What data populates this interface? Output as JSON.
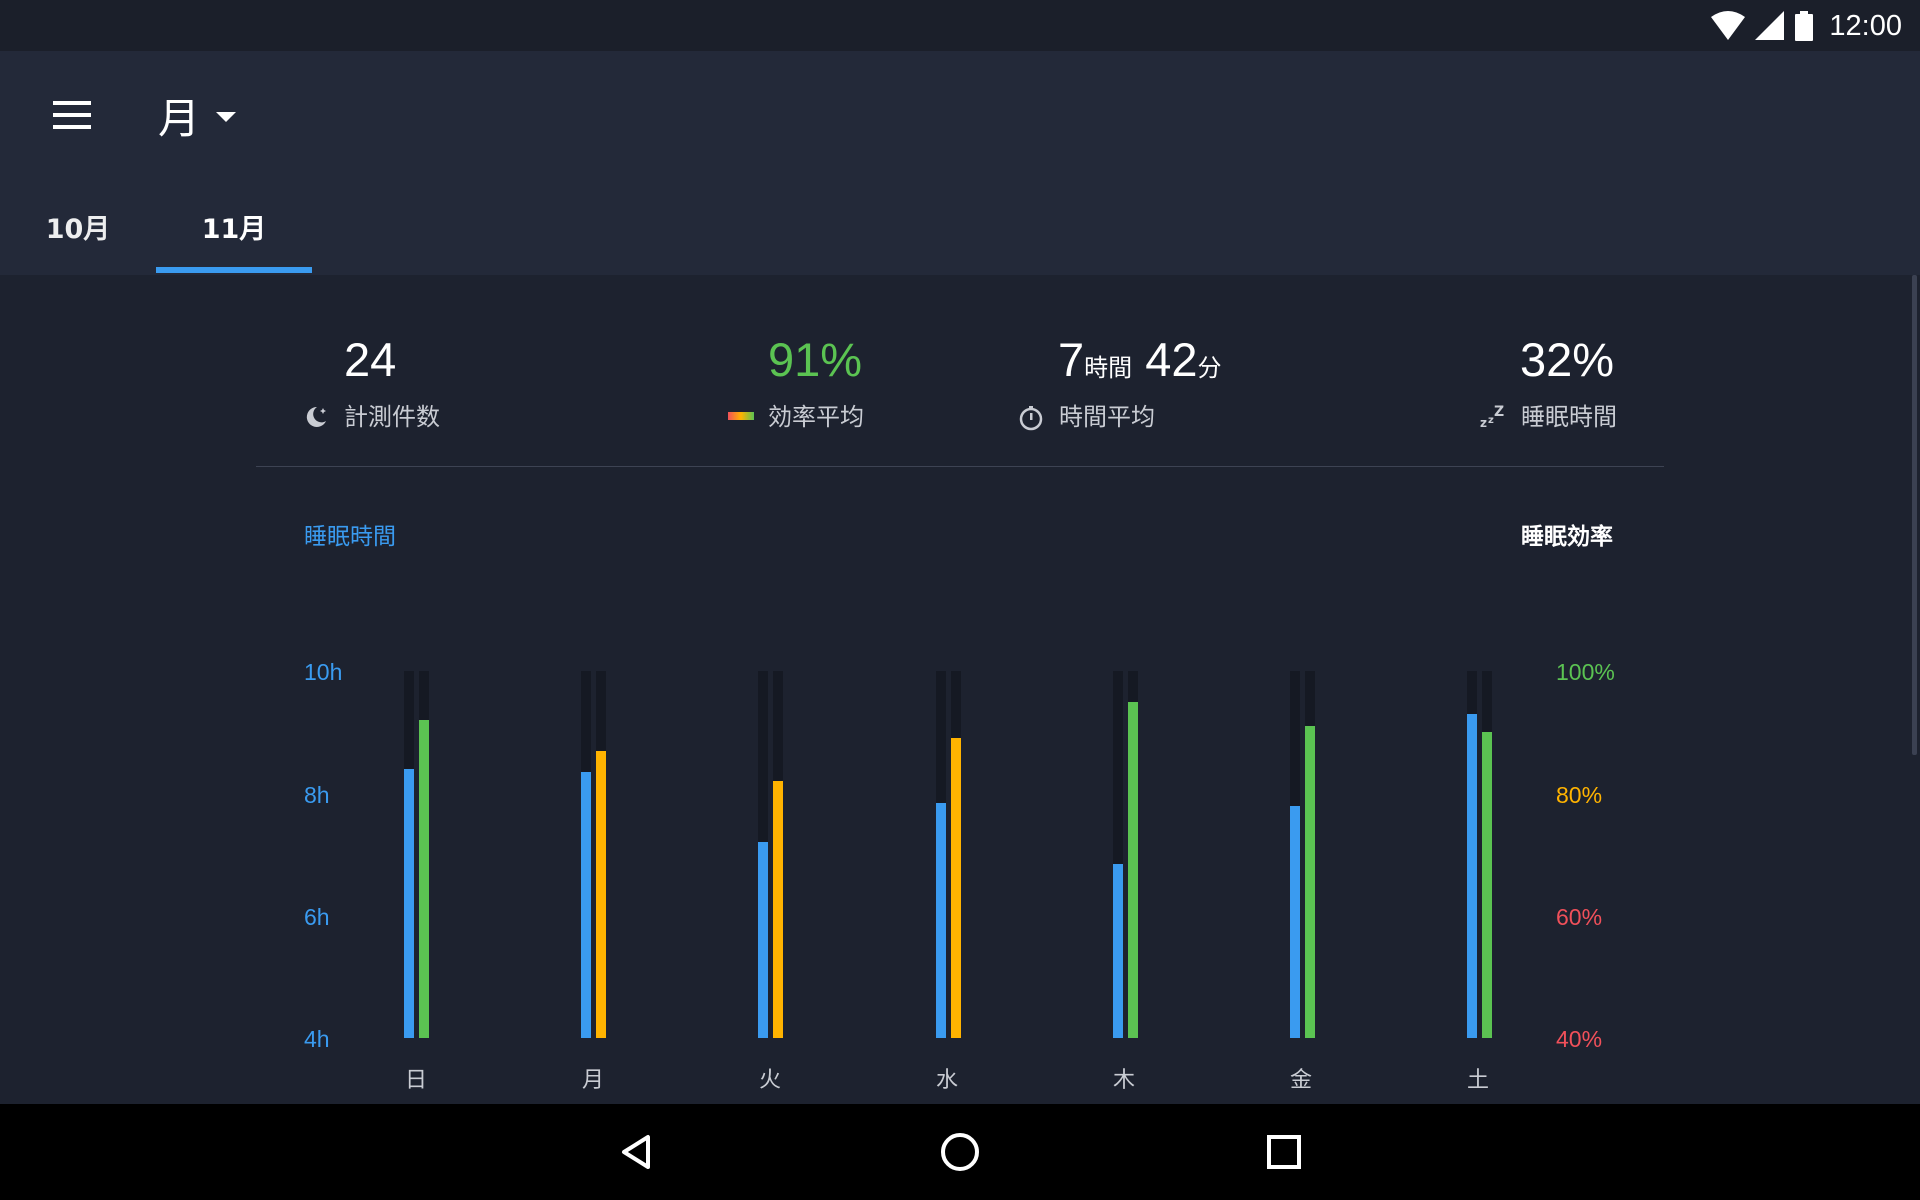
{
  "status_bar": {
    "time": "12:00"
  },
  "app_bar": {
    "period_label": "月"
  },
  "tabs": [
    {
      "label": "10月",
      "selected": false
    },
    {
      "label": "11月",
      "selected": true
    }
  ],
  "stats": {
    "count": {
      "value": "24",
      "label": "計測件数"
    },
    "efficiency": {
      "value": "91%",
      "label": "効率平均"
    },
    "avg_time": {
      "hours": "7",
      "hours_unit": "時間",
      "minutes": "42",
      "minutes_unit": "分",
      "label": "時間平均"
    },
    "sleep": {
      "value": "32%",
      "label": "睡眠時間"
    }
  },
  "colors": {
    "accent_blue": "#3a9bf0",
    "green": "#5bc352",
    "orange": "#ffb300",
    "red": "#f0505a"
  },
  "chart_data": {
    "type": "bar",
    "left_title": "睡眠時間",
    "right_title": "睡眠効率",
    "categories": [
      "日",
      "月",
      "火",
      "水",
      "木",
      "金",
      "土"
    ],
    "y_left": {
      "ticks": [
        "10h",
        "8h",
        "6h",
        "4h"
      ],
      "range": [
        4,
        10
      ]
    },
    "y_right": {
      "ticks": [
        "100%",
        "80%",
        "60%",
        "40%"
      ],
      "range": [
        40,
        100
      ]
    },
    "series": [
      {
        "name": "睡眠時間",
        "axis": "left",
        "unit": "h",
        "values": [
          8.4,
          8.35,
          7.2,
          7.85,
          6.85,
          7.8,
          9.3
        ]
      },
      {
        "name": "睡眠効率",
        "axis": "right",
        "unit": "%",
        "values": [
          92,
          87,
          82,
          89,
          95,
          91,
          90
        ]
      }
    ]
  }
}
